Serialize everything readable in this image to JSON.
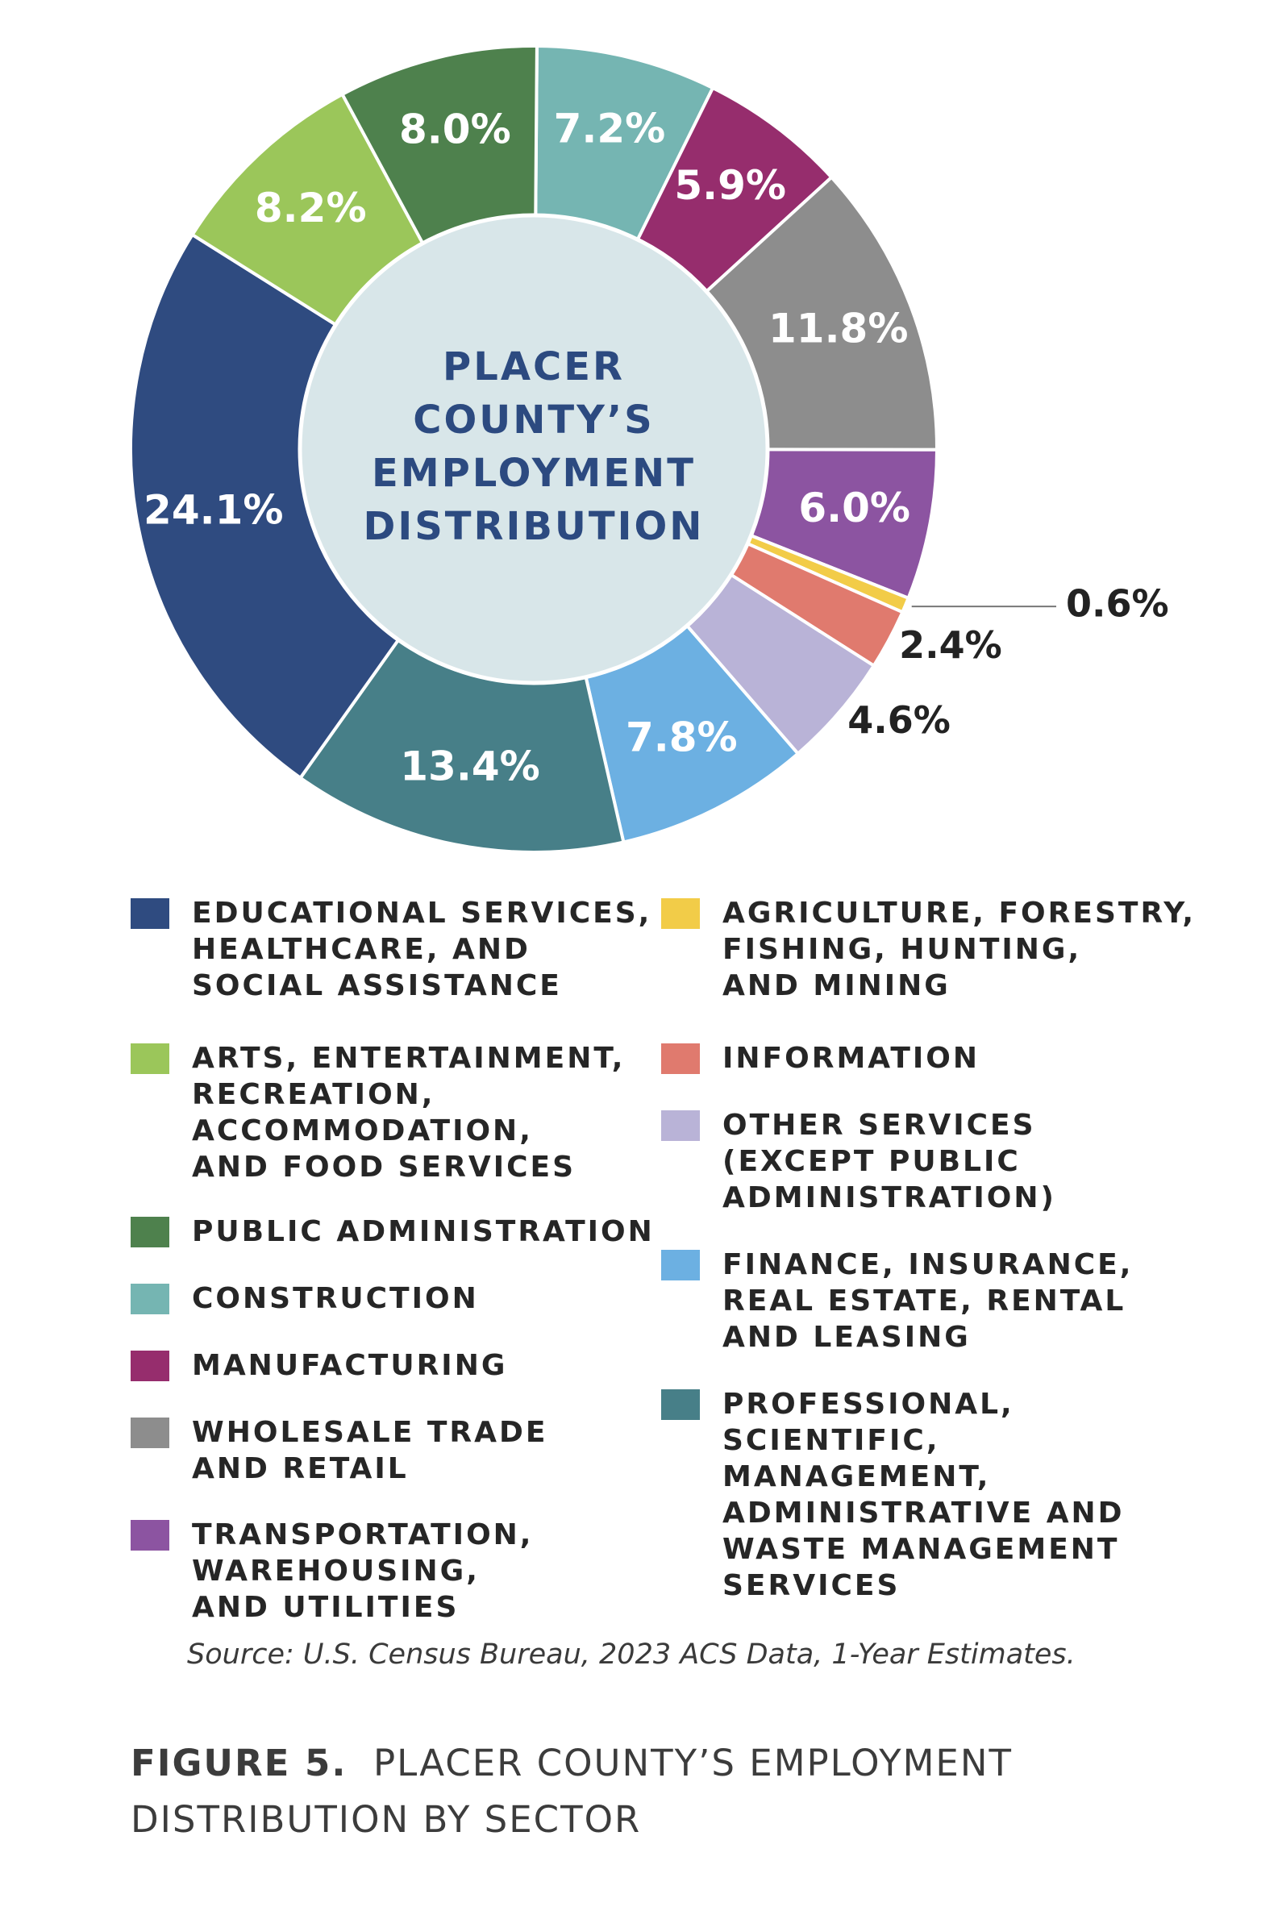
{
  "chart_data": {
    "type": "pie",
    "title": "PLACER COUNTY’S EMPLOYMENT DISTRIBUTION",
    "center_title_lines": [
      "PLACER",
      "COUNTY’S",
      "EMPLOYMENT",
      "DISTRIBUTION"
    ],
    "slices": [
      {
        "label": "EDUCATIONAL SERVICES, HEALTHCARE, AND SOCIAL ASSISTANCE",
        "value": 24.1,
        "display": "24.1%",
        "color": "#2f4b80"
      },
      {
        "label": "ARTS, ENTERTAINMENT, RECREATION, ACCOMMODATION, AND FOOD SERVICES",
        "value": 8.2,
        "display": "8.2%",
        "color": "#9bc65a"
      },
      {
        "label": "PUBLIC ADMINISTRATION",
        "value": 8.0,
        "display": "8.0%",
        "color": "#4e814d"
      },
      {
        "label": "CONSTRUCTION",
        "value": 7.2,
        "display": "7.2%",
        "color": "#75b5b2"
      },
      {
        "label": "MANUFACTURING",
        "value": 5.9,
        "display": "5.9%",
        "color": "#962d6d"
      },
      {
        "label": "WHOLESALE TRADE AND RETAIL",
        "value": 11.8,
        "display": "11.8%",
        "color": "#8d8d8d"
      },
      {
        "label": "TRANSPORTATION, WAREHOUSING, AND UTILITIES",
        "value": 6.0,
        "display": "6.0%",
        "color": "#8c54a1"
      },
      {
        "label": "AGRICULTURE, FORESTRY, FISHING, HUNTING, AND MINING",
        "value": 0.6,
        "display": "0.6%",
        "color": "#f2cc48"
      },
      {
        "label": "INFORMATION",
        "value": 2.4,
        "display": "2.4%",
        "color": "#e07a6e"
      },
      {
        "label": "OTHER SERVICES (EXCEPT PUBLIC ADMINISTRATION)",
        "value": 4.6,
        "display": "4.6%",
        "color": "#b9b3d7"
      },
      {
        "label": "FINANCE, INSURANCE, REAL ESTATE, RENTAL AND LEASING",
        "value": 7.8,
        "display": "7.8%",
        "color": "#6cb0e2"
      },
      {
        "label": "PROFESSIONAL, SCIENTIFIC, MANAGEMENT, ADMINISTRATIVE AND WASTE MANAGEMENT SERVICES",
        "value": 13.4,
        "display": "13.4%",
        "color": "#477f88"
      }
    ],
    "legend": {
      "placement": "bottom",
      "left_column": [
        {
          "text": "EDUCATIONAL SERVICES,\nHEALTHCARE, AND\nSOCIAL ASSISTANCE",
          "color": "#2f4b80"
        },
        {
          "text": "ARTS, ENTERTAINMENT,\nRECREATION,\nACCOMMODATION,\nAND FOOD SERVICES",
          "color": "#9bc65a"
        },
        {
          "text": "PUBLIC ADMINISTRATION",
          "color": "#4e814d"
        },
        {
          "text": "CONSTRUCTION",
          "color": "#75b5b2"
        },
        {
          "text": "MANUFACTURING",
          "color": "#962d6d"
        },
        {
          "text": "WHOLESALE TRADE\nAND RETAIL",
          "color": "#8d8d8d"
        },
        {
          "text": "TRANSPORTATION,\nWAREHOUSING,\nAND UTILITIES",
          "color": "#8c54a1"
        }
      ],
      "right_column": [
        {
          "text": "AGRICULTURE, FORESTRY,\nFISHING, HUNTING,\nAND MINING",
          "color": "#f2cc48"
        },
        {
          "text": "INFORMATION",
          "color": "#e07a6e"
        },
        {
          "text": "OTHER SERVICES\n(EXCEPT PUBLIC\nADMINISTRATION)",
          "color": "#b9b3d7"
        },
        {
          "text": "FINANCE, INSURANCE,\nREAL ESTATE, RENTAL\nAND LEASING",
          "color": "#6cb0e2"
        },
        {
          "text": "PROFESSIONAL,\nSCIENTIFIC,\nMANAGEMENT,\nADMINISTRATIVE AND\nWASTE MANAGEMENT\nSERVICES",
          "color": "#477f88"
        }
      ]
    },
    "center_color": "#d8e6e9",
    "center_text_color": "#2c4a80"
  },
  "source": "Source: U.S. Census Bureau, 2023 ACS Data, 1-Year Estimates.",
  "figure_caption": {
    "number": "FIGURE 5.",
    "text": "PLACER COUNTY’S EMPLOYMENT DISTRIBUTION BY SECTOR"
  }
}
